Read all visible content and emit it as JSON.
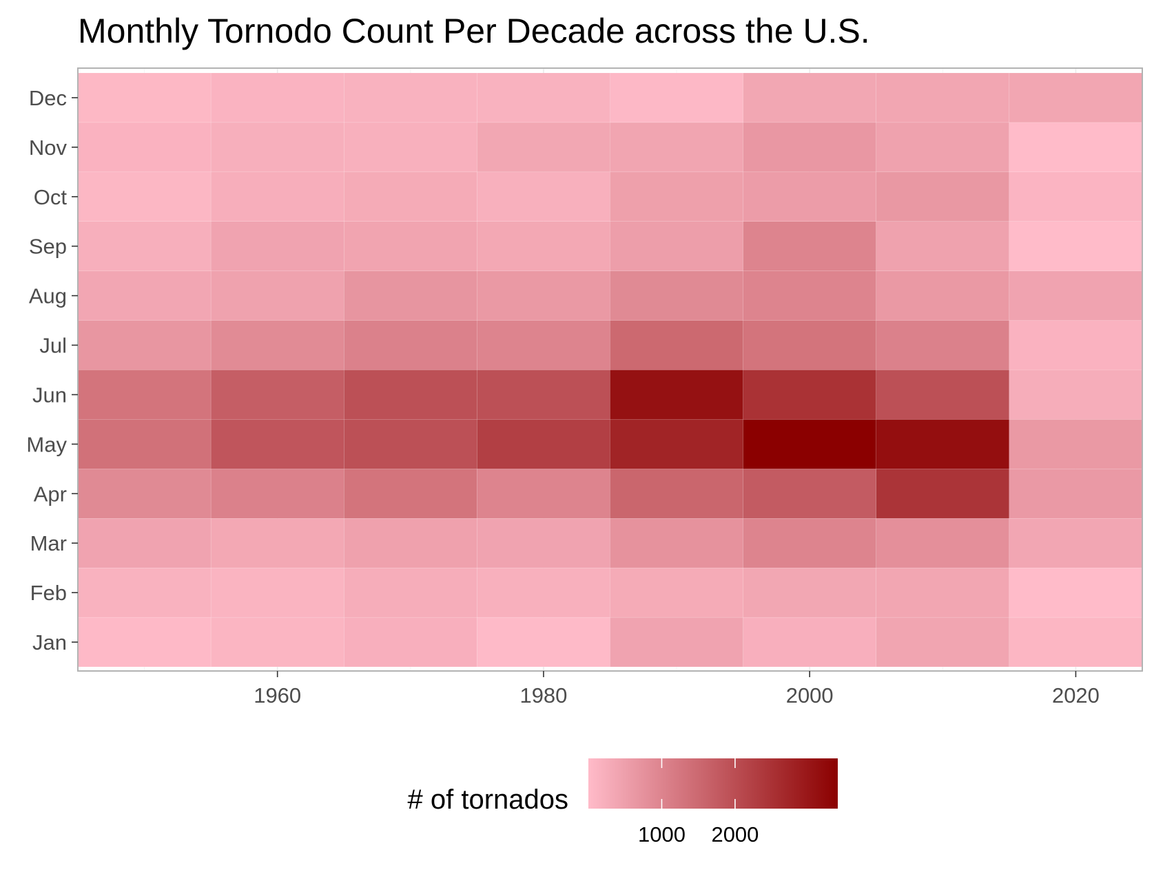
{
  "chart_data": {
    "type": "heatmap",
    "title": "Monthly Tornodo Count Per Decade across the U.S.",
    "xlabel": "",
    "ylabel": "",
    "x": [
      1950,
      1960,
      1970,
      1980,
      1990,
      2000,
      2010,
      2020
    ],
    "x_ticks": [
      "1960",
      "1980",
      "2000",
      "2020"
    ],
    "xlim": [
      1945,
      2025
    ],
    "y": [
      "Jan",
      "Feb",
      "Mar",
      "Apr",
      "May",
      "Jun",
      "Jul",
      "Aug",
      "Sep",
      "Oct",
      "Nov",
      "Dec"
    ],
    "values": [
      [
        35,
        170,
        430,
        900,
        1350,
        1300,
        680,
        380,
        220,
        80,
        160,
        60
      ],
      [
        110,
        135,
        350,
        1050,
        1850,
        1700,
        880,
        460,
        430,
        230,
        220,
        140
      ],
      [
        210,
        250,
        480,
        1300,
        1950,
        1950,
        1050,
        690,
        420,
        300,
        200,
        170
      ],
      [
        20,
        200,
        430,
        1000,
        2250,
        1950,
        1000,
        620,
        350,
        200,
        370,
        170
      ],
      [
        430,
        300,
        740,
        1550,
        2750,
        3100,
        1500,
        900,
        520,
        500,
        400,
        50
      ],
      [
        210,
        370,
        1000,
        1750,
        3400,
        2500,
        1300,
        1000,
        1000,
        560,
        650,
        370
      ],
      [
        400,
        390,
        800,
        2450,
        3150,
        1950,
        1050,
        620,
        460,
        640,
        460,
        390
      ],
      [
        100,
        0,
        380,
        610,
        620,
        260,
        160,
        430,
        0,
        120,
        0,
        390
      ]
    ],
    "colorbar": {
      "title": "# of tornados",
      "ticks": [
        1000,
        2000
      ],
      "tick_labels": [
        "1000",
        "2000"
      ],
      "range": [
        0,
        3400
      ],
      "low_color": "#FFBBC9",
      "high_color": "#8B0000"
    },
    "legend_position": "bottom",
    "grid": true
  }
}
